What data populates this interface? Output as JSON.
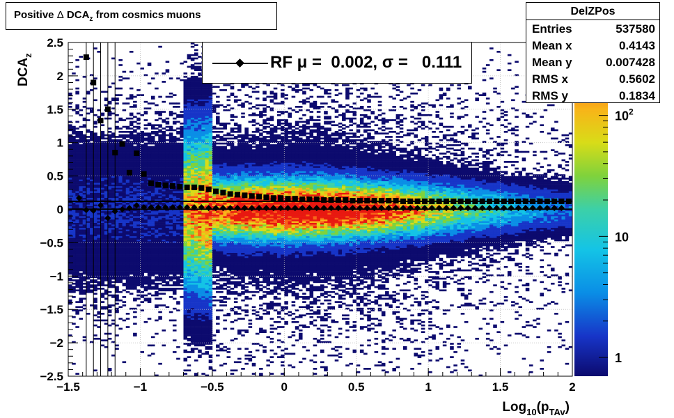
{
  "title": {
    "prefix": "Positive ",
    "delta": "Δ",
    "main": " DCA",
    "sub": "z",
    "suffix": " from cosmics muons"
  },
  "stats": {
    "name": "DelZPos",
    "rows": [
      {
        "key": "Entries",
        "value": "537580"
      },
      {
        "key": "Mean x",
        "value": "0.4143"
      },
      {
        "key": "Mean y",
        "value": "0.007428"
      },
      {
        "key": "RMS x",
        "value": "0.5602"
      },
      {
        "key": "RMS y",
        "value": "0.1834"
      }
    ]
  },
  "legend": {
    "text": "RF μ =  0.002, σ =   0.111"
  },
  "colors": {
    "fit_line": "#000000",
    "markers": "#000000"
  },
  "chart_data": {
    "type": "heatmap",
    "title": "Positive Δ DCAz from cosmics muons",
    "xlabel": "Log10(pTAv)",
    "ylabel": "DCAz",
    "xlim": [
      -1.5,
      2
    ],
    "ylim": [
      -2.5,
      2.5
    ],
    "x_ticks": [
      "−1.5",
      "−1",
      "−0.5",
      "0",
      "0.5",
      "1",
      "1.5",
      "2"
    ],
    "y_ticks": [
      "−2.5",
      "−2",
      "−1.5",
      "−1",
      "−0.5",
      "0",
      "0.5",
      "1",
      "1.5",
      "2",
      "2.5"
    ],
    "z_scale": "log",
    "z_ticks": [
      "1",
      "10",
      "10^2"
    ],
    "z_range": [
      0.7,
      400
    ],
    "grid": true,
    "legend_position": "top",
    "fit_lines": [
      {
        "name": "RF",
        "mu": 0.002,
        "sigma": 0.111
      },
      {
        "y": 0.12
      }
    ],
    "profile_mean": {
      "marker": "square",
      "x": [
        -1.375,
        -1.325,
        -1.275,
        -1.225,
        -1.175,
        -1.125,
        -1.075,
        -1.025,
        -0.975,
        -0.925,
        -0.875,
        -0.825,
        -0.775,
        -0.725,
        -0.675,
        -0.625,
        -0.575,
        -0.525,
        -0.475,
        -0.425,
        -0.375,
        -0.325,
        -0.275,
        -0.225,
        -0.175,
        -0.125,
        -0.075,
        -0.025,
        0.025,
        0.075,
        0.125,
        0.175,
        0.225,
        0.275,
        0.325,
        0.375,
        0.425,
        0.475,
        0.525,
        0.575,
        0.625,
        0.675,
        0.725,
        0.775,
        0.825,
        0.875,
        0.925,
        0.975,
        1.025,
        1.075,
        1.125,
        1.175,
        1.225,
        1.275,
        1.325,
        1.375,
        1.425,
        1.475,
        1.525,
        1.575,
        1.625,
        1.675,
        1.725,
        1.775,
        1.825,
        1.875,
        1.925,
        1.975
      ],
      "y": [
        2.28,
        1.9,
        1.33,
        1.5,
        0.85,
        0.98,
        0.55,
        0.84,
        0.53,
        0.39,
        0.37,
        0.36,
        0.35,
        0.34,
        0.33,
        0.33,
        0.32,
        0.3,
        0.27,
        0.25,
        0.23,
        0.22,
        0.21,
        0.2,
        0.19,
        0.18,
        0.17,
        0.17,
        0.16,
        0.16,
        0.15,
        0.15,
        0.15,
        0.14,
        0.14,
        0.14,
        0.14,
        0.13,
        0.13,
        0.13,
        0.13,
        0.13,
        0.13,
        0.13,
        0.12,
        0.12,
        0.12,
        0.12,
        0.12,
        0.12,
        0.12,
        0.12,
        0.12,
        0.12,
        0.12,
        0.12,
        0.12,
        0.12,
        0.12,
        0.12,
        0.12,
        0.12,
        0.12,
        0.12,
        0.12,
        0.12,
        0.12,
        0.12
      ]
    },
    "fit_mean": {
      "marker": "diamond",
      "x": [
        -1.425,
        -1.375,
        -1.325,
        -1.275,
        -1.225,
        -1.175,
        -1.125,
        -1.075,
        -1.025,
        -0.975,
        -0.925,
        -0.875,
        -0.825,
        -0.775,
        -0.725,
        -0.675,
        -0.625,
        -0.575,
        -0.525,
        -0.475,
        -0.425,
        -0.375,
        -0.325,
        -0.275,
        -0.225,
        -0.175,
        -0.125,
        -0.075,
        -0.025,
        0.025,
        0.075,
        0.125,
        0.175,
        0.225,
        0.275,
        0.325,
        0.375,
        0.425,
        0.475,
        0.525,
        0.575,
        0.625,
        0.675,
        0.725,
        0.775,
        0.825,
        0.875,
        0.925,
        0.975,
        1.025,
        1.075,
        1.125,
        1.175,
        1.225,
        1.275,
        1.325,
        1.375,
        1.425,
        1.475,
        1.525,
        1.575,
        1.625,
        1.675,
        1.725,
        1.775,
        1.825,
        1.875,
        1.925,
        1.975
      ],
      "y": [
        0.17,
        -0.01,
        -0.02,
        0.06,
        -0.13,
        -0.03,
        0.0,
        0.02,
        0.06,
        0.03,
        0.03,
        0.03,
        0.03,
        0.03,
        0.03,
        0.03,
        0.03,
        0.03,
        0.02,
        0.02,
        0.02,
        0.02,
        0.02,
        0.02,
        0.02,
        0.02,
        0.02,
        0.02,
        0.02,
        0.02,
        0.02,
        0.02,
        0.02,
        0.02,
        0.02,
        0.02,
        0.02,
        0.02,
        0.02,
        0.02,
        0.02,
        0.02,
        0.02,
        0.02,
        0.02,
        0.02,
        0.02,
        0.02,
        0.02,
        0.02,
        0.02,
        0.02,
        0.02,
        0.02,
        0.02,
        0.02,
        0.02,
        0.02,
        0.02,
        0.02,
        0.02,
        0.02,
        0.02,
        0.02,
        0.02,
        0.02,
        0.02,
        0.02
      ]
    }
  }
}
